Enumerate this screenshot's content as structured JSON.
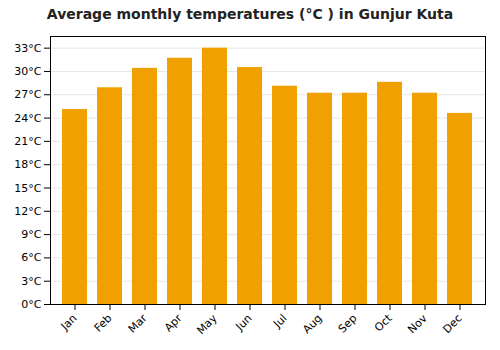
{
  "chart_data": {
    "type": "bar",
    "title": "Average monthly temperatures (°C ) in Gunjur Kuta",
    "categories": [
      "Jan",
      "Feb",
      "Mar",
      "Apr",
      "May",
      "Jun",
      "Jul",
      "Aug",
      "Sep",
      "Oct",
      "Nov",
      "Dec"
    ],
    "values": [
      25.1,
      27.9,
      30.4,
      31.7,
      33.0,
      30.5,
      28.1,
      27.2,
      27.2,
      28.6,
      27.2,
      24.6
    ],
    "color": "#F0A000",
    "ylim": [
      0,
      34.5
    ],
    "yticks": [
      {
        "value": 0,
        "label": "0°C"
      },
      {
        "value": 3,
        "label": "3°C"
      },
      {
        "value": 6,
        "label": "6°C"
      },
      {
        "value": 9,
        "label": "9°C"
      },
      {
        "value": 12,
        "label": "12°C"
      },
      {
        "value": 15,
        "label": "15°C"
      },
      {
        "value": 18,
        "label": "18°C"
      },
      {
        "value": 21,
        "label": "21°C"
      },
      {
        "value": 24,
        "label": "24°C"
      },
      {
        "value": 27,
        "label": "27°C"
      },
      {
        "value": 30,
        "label": "30°C"
      },
      {
        "value": 33,
        "label": "33°C"
      }
    ],
    "grid": true
  }
}
